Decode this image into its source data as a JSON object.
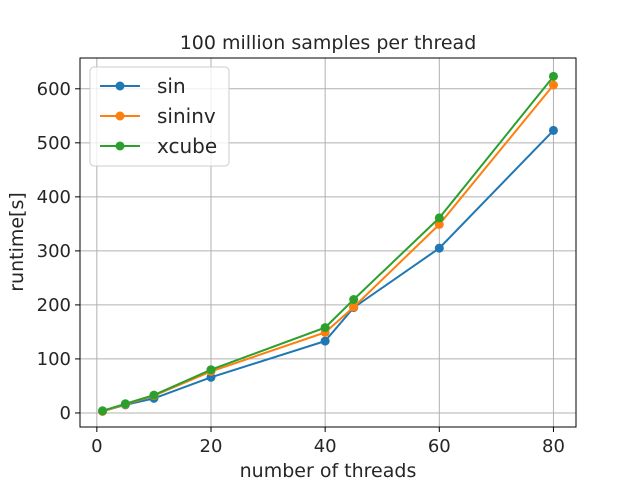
{
  "chart_data": {
    "type": "line",
    "title": "100 million samples per thread",
    "xlabel": "number of threads",
    "ylabel": "runtime[s]",
    "x": [
      1,
      5,
      10,
      20,
      40,
      45,
      60,
      80
    ],
    "xlim": [
      -2.95,
      83.95
    ],
    "ylim": [
      -26,
      657
    ],
    "xticks": [
      0,
      20,
      40,
      60,
      80
    ],
    "yticks": [
      0,
      100,
      200,
      300,
      400,
      500,
      600
    ],
    "grid": true,
    "legend_position": "top-left",
    "series": [
      {
        "name": "sin",
        "color": "#1f77b4",
        "values": [
          3,
          15,
          27,
          66,
          133,
          195,
          305,
          523
        ]
      },
      {
        "name": "sininv",
        "color": "#ff7f0e",
        "values": [
          3,
          16,
          32,
          77,
          149,
          196,
          349,
          607
        ]
      },
      {
        "name": "xcube",
        "color": "#2ca02c",
        "values": [
          4,
          17,
          33,
          80,
          158,
          210,
          361,
          623
        ]
      }
    ]
  }
}
